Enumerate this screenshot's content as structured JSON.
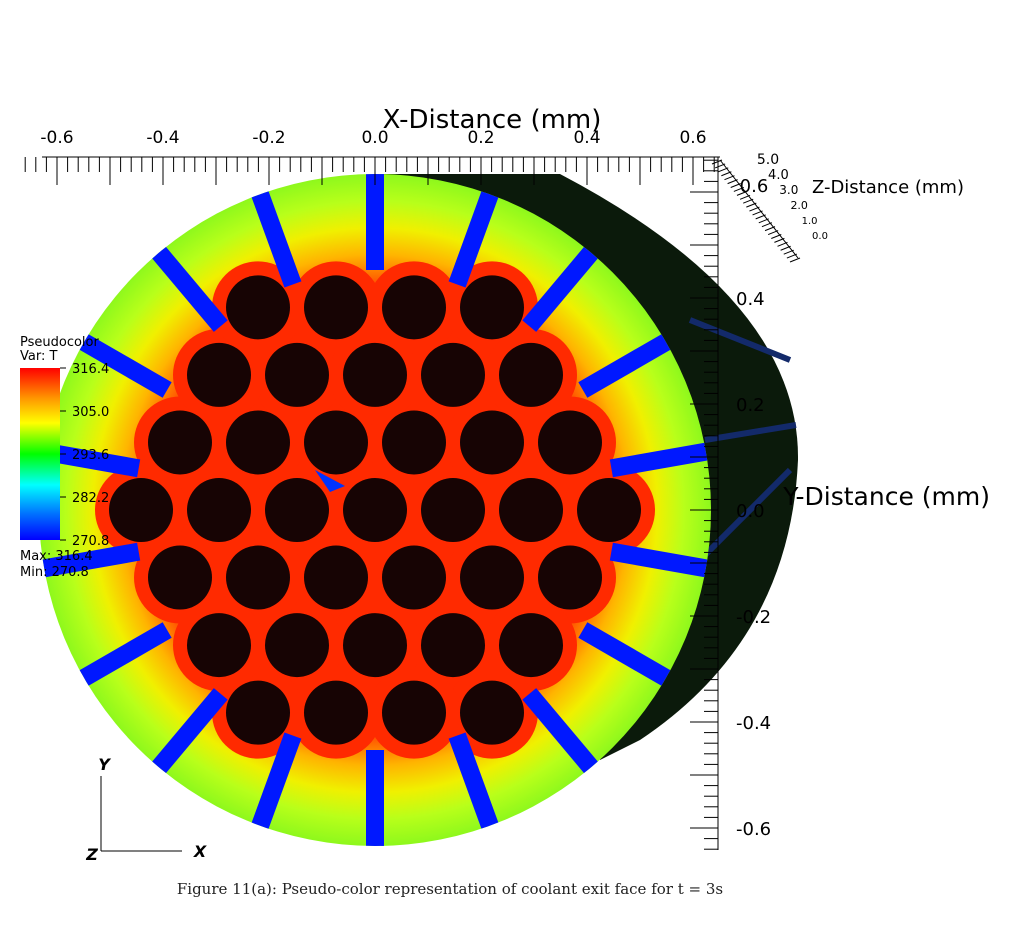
{
  "figure": {
    "caption": "Figure 11(a): Pseudo-color representation of coolant exit face for t = 3s"
  },
  "legend": {
    "title": "Pseudocolor",
    "var_label": "Var: T",
    "max_label": "Max: 316.4",
    "min_label": "Min: 270.8",
    "ticks": [
      "316.4",
      "305.0",
      "293.6",
      "282.2",
      "270.8"
    ]
  },
  "triad": {
    "x": "X",
    "y": "Y",
    "z": "Z"
  },
  "chart_data": {
    "type": "heatmap",
    "variable": "T",
    "value_range": [
      270.8,
      316.4
    ],
    "colormap": "hot",
    "x_axis": {
      "label": "X-Distance (mm)",
      "range": [
        -0.7,
        0.7
      ],
      "ticks": [
        "-0.6",
        "-0.4",
        "-0.2",
        "0.0",
        "0.2",
        "0.4",
        "0.6"
      ]
    },
    "y_axis": {
      "label": "Y-Distance (mm)",
      "range": [
        -0.7,
        0.7
      ],
      "ticks": [
        "0.4",
        "0.2",
        "0.0",
        "-0.2",
        "-0.4",
        "-0.6"
      ]
    },
    "z_axis": {
      "label": "Z-Distance (mm)",
      "ticks": [
        "5.0",
        "4.0",
        "3.0",
        "2.0",
        "1.0",
        "0.0"
      ],
      "corner_label": "0.6"
    },
    "coolant_channel_rings": [
      1,
      6,
      12,
      18
    ],
    "coolant_channel_count": 37,
    "grooves": 18,
    "groove_temperature": 270.8,
    "core_temperature": 316.4,
    "rim_temperature": 300.5
  }
}
